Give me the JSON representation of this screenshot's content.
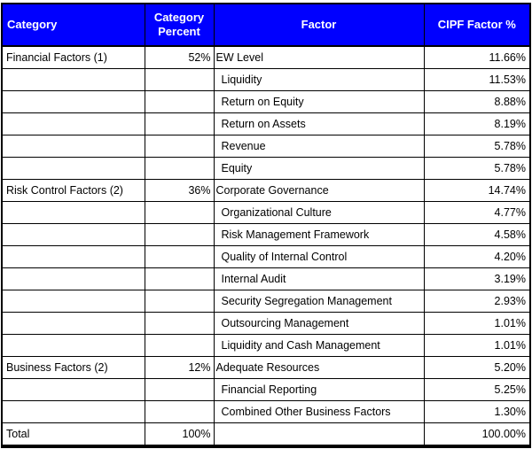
{
  "colors": {
    "header_bg": "#0000FF",
    "header_text": "#FFFFFF",
    "border": "#000000",
    "row_bg": "#FFFFFF",
    "text": "#000000"
  },
  "chart_data": {
    "type": "table",
    "title": "",
    "columns": [
      "Category",
      "Category Percent",
      "Factor",
      "CIPF Factor %"
    ],
    "rows": [
      [
        "Financial Factors (1)",
        "52%",
        "EW Level",
        "11.66%"
      ],
      [
        "",
        "",
        "Liquidity",
        "11.53%"
      ],
      [
        "",
        "",
        "Return on Equity",
        "8.88%"
      ],
      [
        "",
        "",
        "Return on Assets",
        "8.19%"
      ],
      [
        "",
        "",
        "Revenue",
        "5.78%"
      ],
      [
        "",
        "",
        "Equity",
        "5.78%"
      ],
      [
        "Risk Control Factors (2)",
        "36%",
        "Corporate Governance",
        "14.74%"
      ],
      [
        "",
        "",
        "Organizational Culture",
        "4.77%"
      ],
      [
        "",
        "",
        "Risk Management Framework",
        "4.58%"
      ],
      [
        "",
        "",
        "Quality of Internal Control",
        "4.20%"
      ],
      [
        "",
        "",
        "Internal Audit",
        "3.19%"
      ],
      [
        "",
        "",
        "Security Segregation Management",
        "2.93%"
      ],
      [
        "",
        "",
        "Outsourcing Management",
        "1.01%"
      ],
      [
        "",
        "",
        "Liquidity and Cash Management",
        "1.01%"
      ],
      [
        "Business Factors (2)",
        "12%",
        "Adequate Resources",
        "5.20%"
      ],
      [
        "",
        "",
        "Financial Reporting",
        "5.25%"
      ],
      [
        "",
        "",
        "Combined Other Business Factors",
        "1.30%"
      ],
      [
        "Total",
        "100%",
        "",
        "100.00%"
      ]
    ]
  }
}
